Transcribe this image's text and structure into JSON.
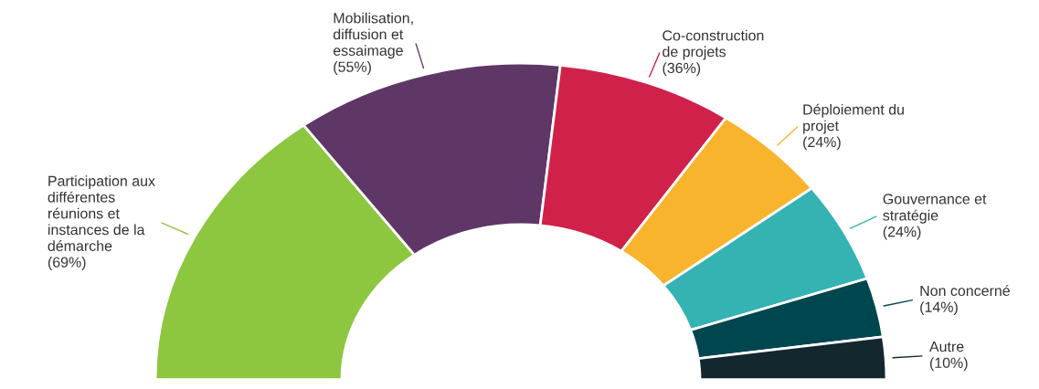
{
  "chart_data": {
    "type": "donut",
    "categories": [
      "Participation aux\ndifférentes\nréunions et\ninstances de la\ndémarche",
      "Mobilisation,\ndiffusion et\nessaimage",
      "Co-construction\nde projets",
      "Déploiement du\nprojet",
      "Gouvernance et\nstratégie",
      "Non concerné",
      "Autre"
    ],
    "values": [
      69,
      55,
      36,
      24,
      24,
      14,
      10
    ],
    "value_labels": [
      "(69%)",
      "(55%)",
      "(36%)",
      "(24%)",
      "(24%)",
      "(14%)",
      "(10%)"
    ],
    "colors": [
      "#8dc63f",
      "#5e3767",
      "#d0214b",
      "#f9b42d",
      "#35b3b3",
      "#00464f",
      "#13272f"
    ],
    "legend": false
  }
}
